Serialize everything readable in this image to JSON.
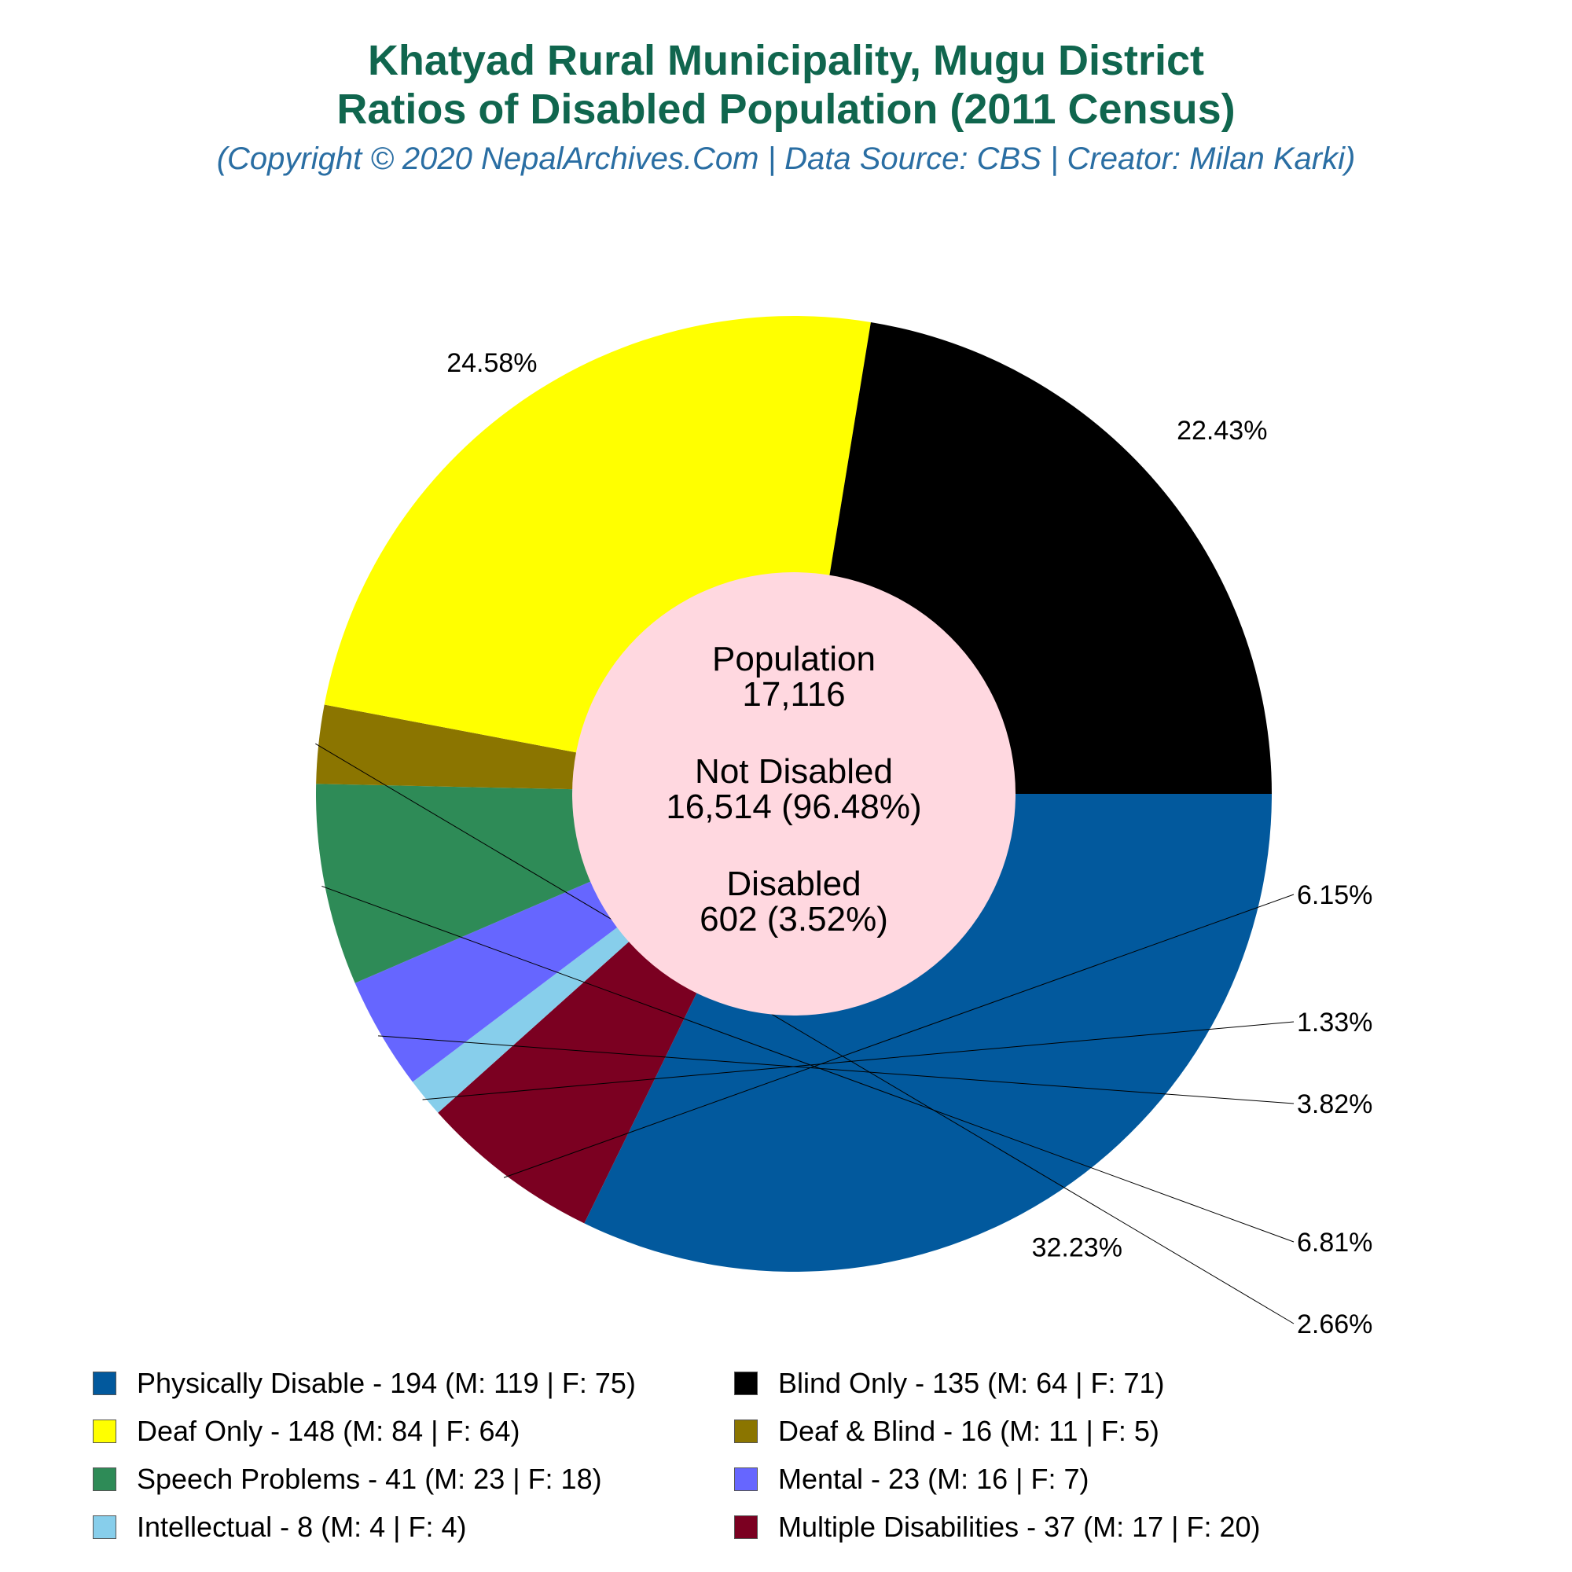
{
  "title_line1": "Khatyad Rural Municipality, Mugu District",
  "title_line2": "Ratios of Disabled Population (2011 Census)",
  "subtitle": "(Copyright © 2020 NepalArchives.Com | Data Source: CBS | Creator: Milan Karki)",
  "center": {
    "population_label": "Population",
    "population_value": "17,116",
    "not_disabled_label": "Not Disabled",
    "not_disabled_value": "16,514 (96.48%)",
    "disabled_label": "Disabled",
    "disabled_value": "602 (3.52%)"
  },
  "chart_data": {
    "type": "pie",
    "title": "Khatyad Rural Municipality, Mugu District Ratios of Disabled Population (2011 Census)",
    "slices": [
      {
        "name": "Physically Disable",
        "value": 194,
        "percent": "32.23%",
        "legend": "Physically Disable - 194 (M: 119 | F: 75)",
        "color": "#02599d"
      },
      {
        "name": "Multiple Disabilities",
        "value": 37,
        "percent": "6.15%",
        "legend": "Multiple Disabilities - 37 (M: 17 | F: 20)",
        "color": "#7b0021"
      },
      {
        "name": "Intellectual",
        "value": 8,
        "percent": "1.33%",
        "legend": "Intellectual - 8 (M: 4 | F: 4)",
        "color": "#87ceeb"
      },
      {
        "name": "Mental",
        "value": 23,
        "percent": "3.82%",
        "legend": "Mental - 23 (M: 16 | F: 7)",
        "color": "#6666ff"
      },
      {
        "name": "Speech Problems",
        "value": 41,
        "percent": "6.81%",
        "legend": "Speech Problems - 41 (M: 23 | F: 18)",
        "color": "#2e8b57"
      },
      {
        "name": "Deaf & Blind",
        "value": 16,
        "percent": "2.66%",
        "legend": "Deaf & Blind - 16 (M: 11 | F: 5)",
        "color": "#8b7500"
      },
      {
        "name": "Deaf Only",
        "value": 148,
        "percent": "24.58%",
        "legend": "Deaf Only - 148 (M: 84 | F: 64)",
        "color": "#ffff00"
      },
      {
        "name": "Blind Only",
        "value": 135,
        "percent": "22.43%",
        "legend": "Blind Only - 135 (M: 64 | F: 71)",
        "color": "#000000"
      }
    ],
    "legend_order": [
      "Physically Disable",
      "Blind Only",
      "Deaf Only",
      "Deaf & Blind",
      "Speech Problems",
      "Mental",
      "Intellectual",
      "Multiple Disabilities"
    ],
    "legend_position": "bottom",
    "center_hole_color": "#ffd8e0"
  }
}
